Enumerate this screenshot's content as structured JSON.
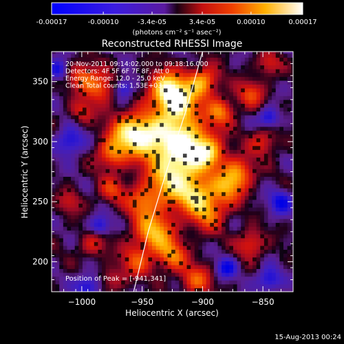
{
  "colorbar": {
    "tick_labels": [
      "-0.00017",
      "-0.00010",
      "-3.4e-05",
      "3.4e-05",
      "0.00010",
      "0.00017"
    ],
    "tick_values": [
      -0.00017,
      -0.0001,
      -3.4e-05,
      3.4e-05,
      0.0001,
      0.00017
    ],
    "range": [
      -0.00017,
      0.00017
    ],
    "unit_label": "(photons cm⁻² s⁻¹ asec⁻²)"
  },
  "chart_data": {
    "type": "heatmap",
    "title": "Reconstructed RHESSI Image",
    "xlabel": "Heliocentric X (arcsec)",
    "ylabel": "Heliocentric Y (arcsec)",
    "xlim": [
      -1025,
      -825
    ],
    "ylim": [
      175,
      375
    ],
    "x_ticks": [
      -1000,
      -950,
      -900,
      -850
    ],
    "x_tick_labels": [
      "−1000",
      "−950",
      "−900",
      "−850"
    ],
    "y_ticks": [
      200,
      250,
      300,
      350
    ],
    "y_tick_labels": [
      "200",
      "250",
      "300",
      "350"
    ],
    "annotations": [
      "20-Nov-2011 09:14:02.000 to 09:18:16.000",
      "Detectors: 4F 5F 6F 7F 8F, Att 0",
      "Energy Range: 12.0 - 25.0 keV",
      "Clean     Total counts: 1.53E+03"
    ],
    "peak_label": "Position of Peak = [-941,341]",
    "peak": [
      -941,
      341
    ],
    "limb_points": [
      [
        -957,
        175
      ],
      [
        -945,
        225
      ],
      [
        -930,
        275
      ],
      [
        -914,
        325
      ],
      [
        -900,
        375
      ]
    ],
    "grid": false
  },
  "footer": {
    "timestamp": "15-Aug-2013 00:24"
  }
}
